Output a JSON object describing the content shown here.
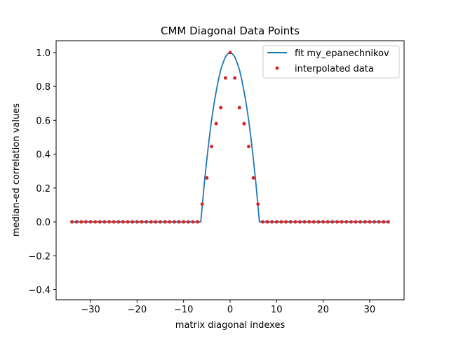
{
  "chart_data": {
    "type": "line",
    "title": "CMM Diagonal Data Points",
    "xlabel": "matrix diagonal indexes",
    "ylabel": "median-ed correlation values",
    "xlim": [
      -37.4,
      37.4
    ],
    "ylim": [
      -0.46,
      1.07
    ],
    "xticks": [
      -30,
      -20,
      -10,
      0,
      10,
      20,
      30
    ],
    "xtick_labels": [
      "−30",
      "−20",
      "−10",
      "0",
      "10",
      "20",
      "30"
    ],
    "yticks": [
      -0.4,
      -0.2,
      0.0,
      0.2,
      0.4,
      0.6,
      0.8,
      1.0
    ],
    "ytick_labels": [
      "−0.4",
      "−0.2",
      "0.0",
      "0.2",
      "0.4",
      "0.6",
      "0.8",
      "1.0"
    ],
    "grid": false,
    "legend_position": "top-right",
    "series": [
      {
        "name": "fit my_epanechnikov",
        "kind": "line",
        "color": "#1f77b4",
        "x": [
          -34,
          -6.3,
          -6.0,
          -5.5,
          -5.0,
          -4.5,
          -4.0,
          -3.5,
          -3.0,
          -2.5,
          -2.0,
          -1.5,
          -1.0,
          -0.5,
          0.0,
          0.5,
          1.0,
          1.5,
          2.0,
          2.5,
          3.0,
          3.5,
          4.0,
          4.5,
          5.0,
          5.5,
          6.0,
          6.3,
          34
        ],
        "y": [
          0.0,
          0.0,
          0.09,
          0.24,
          0.37,
          0.49,
          0.6,
          0.69,
          0.77,
          0.84,
          0.9,
          0.94,
          0.975,
          0.993,
          1.0,
          0.993,
          0.975,
          0.94,
          0.9,
          0.84,
          0.77,
          0.69,
          0.6,
          0.49,
          0.37,
          0.24,
          0.09,
          0.0,
          0.0
        ]
      },
      {
        "name": "interpolated data",
        "kind": "scatter",
        "color": "#d62728",
        "x": [
          -34,
          -33,
          -32,
          -31,
          -30,
          -29,
          -28,
          -27,
          -26,
          -25,
          -24,
          -23,
          -22,
          -21,
          -20,
          -19,
          -18,
          -17,
          -16,
          -15,
          -14,
          -13,
          -12,
          -11,
          -10,
          -9,
          -8,
          -7,
          -6,
          -5,
          -4,
          -3,
          -2,
          -1,
          0,
          1,
          2,
          3,
          4,
          5,
          6,
          7,
          8,
          9,
          10,
          11,
          12,
          13,
          14,
          15,
          16,
          17,
          18,
          19,
          20,
          21,
          22,
          23,
          24,
          25,
          26,
          27,
          28,
          29,
          30,
          31,
          32,
          33,
          34
        ],
        "y": [
          0,
          0,
          0,
          0,
          0,
          0,
          0,
          0,
          0,
          0,
          0,
          0,
          0,
          0,
          0,
          0,
          0,
          0,
          0,
          0,
          0,
          0,
          0,
          0,
          0,
          0,
          0,
          0,
          0.105,
          0.26,
          0.445,
          0.58,
          0.675,
          0.85,
          1.0,
          0.85,
          0.675,
          0.58,
          0.445,
          0.26,
          0.105,
          0,
          0,
          0,
          0,
          0,
          0,
          0,
          0,
          0,
          0,
          0,
          0,
          0,
          0,
          0,
          0,
          0,
          0,
          0,
          0,
          0,
          0,
          0,
          0,
          0,
          0,
          0,
          0
        ]
      }
    ]
  }
}
